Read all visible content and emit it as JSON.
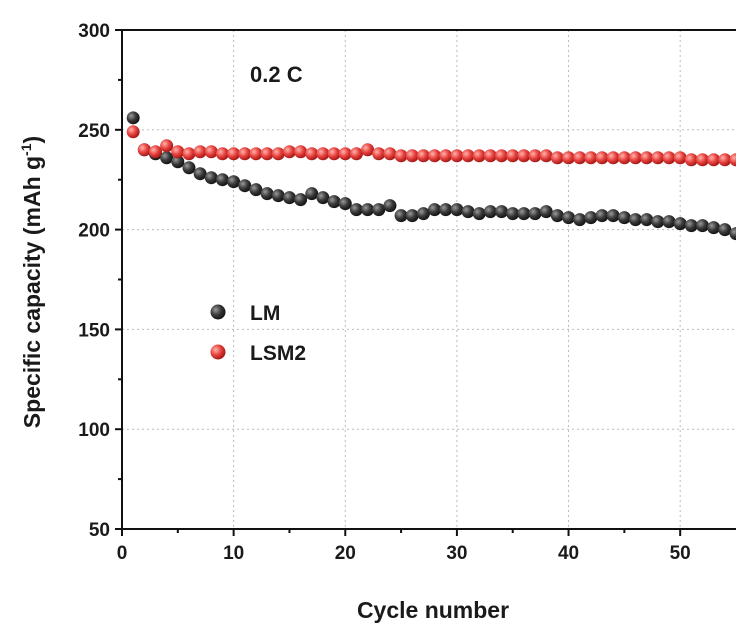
{
  "chart_data": {
    "type": "scatter",
    "xlabel": "Cycle number",
    "ylabel_main": "Specific capacity (mAh g",
    "ylabel_sup": "-1",
    "ylabel_close": ")",
    "annotation": "0.2 C",
    "xlim": [
      0,
      55
    ],
    "ylim": [
      50,
      300
    ],
    "x_ticks": [
      0,
      10,
      20,
      30,
      40,
      50
    ],
    "y_ticks": [
      50,
      100,
      150,
      200,
      250,
      300
    ],
    "grid": "dotted",
    "legend_placement": "center-left",
    "series": [
      {
        "name": "LM",
        "color": "#3a3a3a",
        "x": [
          1,
          2,
          3,
          4,
          5,
          6,
          7,
          8,
          9,
          10,
          11,
          12,
          13,
          14,
          15,
          16,
          17,
          18,
          19,
          20,
          21,
          22,
          23,
          24,
          25,
          26,
          27,
          28,
          29,
          30,
          31,
          32,
          33,
          34,
          35,
          36,
          37,
          38,
          39,
          40,
          41,
          42,
          43,
          44,
          45,
          46,
          47,
          48,
          49,
          50,
          51,
          52,
          53,
          54,
          55
        ],
        "values": [
          256,
          240,
          238,
          236,
          234,
          231,
          228,
          226,
          225,
          224,
          222,
          220,
          218,
          217,
          216,
          215,
          218,
          216,
          214,
          213,
          210,
          210,
          210,
          212,
          207,
          207,
          208,
          210,
          210,
          210,
          209,
          208,
          209,
          209,
          208,
          208,
          208,
          209,
          207,
          206,
          205,
          206,
          207,
          207,
          206,
          205,
          205,
          204,
          204,
          203,
          202,
          202,
          201,
          200,
          198
        ]
      },
      {
        "name": "LSM2",
        "color": "#e8433f",
        "x": [
          1,
          2,
          3,
          4,
          5,
          6,
          7,
          8,
          9,
          10,
          11,
          12,
          13,
          14,
          15,
          16,
          17,
          18,
          19,
          20,
          21,
          22,
          23,
          24,
          25,
          26,
          27,
          28,
          29,
          30,
          31,
          32,
          33,
          34,
          35,
          36,
          37,
          38,
          39,
          40,
          41,
          42,
          43,
          44,
          45,
          46,
          47,
          48,
          49,
          50,
          51,
          52,
          53,
          54,
          55
        ],
        "values": [
          249,
          240,
          239,
          242,
          239,
          238,
          239,
          239,
          238,
          238,
          238,
          238,
          238,
          238,
          239,
          239,
          238,
          238,
          238,
          238,
          238,
          240,
          238,
          238,
          237,
          237,
          237,
          237,
          237,
          237,
          237,
          237,
          237,
          237,
          237,
          237,
          237,
          237,
          236,
          236,
          236,
          236,
          236,
          236,
          236,
          236,
          236,
          236,
          236,
          236,
          235,
          235,
          235,
          235,
          235
        ]
      }
    ]
  }
}
